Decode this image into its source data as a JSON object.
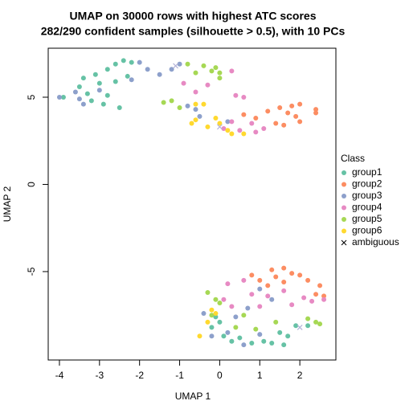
{
  "chart_data": {
    "type": "scatter",
    "title": "UMAP on 30000 rows with highest ATC scores",
    "subtitle": "282/290 confident samples (silhouette > 0.5), with 10 PCs",
    "x_label": "UMAP 1",
    "y_label": "UMAP 2",
    "legend_title": "Class",
    "legend_position": "right",
    "xlim": [
      -4.28,
      2.9
    ],
    "ylim": [
      -10.07,
      7.81
    ],
    "xticks": [
      -4,
      -3,
      -2,
      -1,
      0,
      1,
      2
    ],
    "yticks": [
      -5,
      0,
      5
    ],
    "series": [
      {
        "name": "group1",
        "color": "#66C2A5",
        "marker": "circle",
        "x": [
          -3.9,
          -3.5,
          -3.3,
          -3.1,
          -3.0,
          -2.8,
          -2.6,
          -2.4,
          -2.2,
          -2.6,
          -2.8,
          -3.2,
          -2.9,
          -2.5,
          -3.4,
          -2.3,
          -0.2,
          0.1,
          0.3,
          0.5,
          0.8,
          1.1,
          1.3,
          1.6,
          1.7,
          1.5,
          0.0,
          -0.1,
          1.9,
          2.2
        ],
        "y": [
          5.0,
          5.6,
          5.2,
          6.3,
          5.8,
          6.6,
          6.9,
          7.1,
          7.0,
          5.9,
          5.1,
          4.8,
          4.6,
          4.4,
          6.1,
          6.2,
          -8.2,
          -8.7,
          -9.0,
          -8.8,
          -9.1,
          -9.0,
          -9.1,
          -9.2,
          -8.7,
          -8.5,
          -7.9,
          -7.6,
          -8.1,
          -8.1
        ]
      },
      {
        "name": "group2",
        "color": "#FC8D62",
        "marker": "circle",
        "x": [
          0.6,
          0.9,
          1.2,
          1.4,
          1.6,
          1.7,
          1.9,
          2.0,
          1.8,
          2.0,
          2.4,
          2.4,
          1.5,
          1.0,
          1.3,
          1.4,
          1.6,
          1.8,
          2.0,
          2.2,
          2.5,
          2.6,
          2.4,
          1.2,
          1.6,
          0.8
        ],
        "y": [
          4.0,
          3.8,
          4.2,
          3.5,
          3.4,
          4.1,
          3.9,
          3.6,
          4.5,
          4.6,
          4.1,
          4.3,
          4.4,
          -5.5,
          -4.9,
          -5.3,
          -4.8,
          -5.1,
          -5.2,
          -5.5,
          -5.8,
          -6.4,
          -6.3,
          -5.8,
          -5.6,
          -5.2
        ]
      },
      {
        "name": "group3",
        "color": "#8DA0CB",
        "marker": "circle",
        "x": [
          -4.0,
          -3.6,
          -3.5,
          -3.4,
          -3.0,
          -2.2,
          -2.0,
          -1.8,
          -1.5,
          -1.2,
          -1.0,
          -0.8,
          -0.6,
          -0.5,
          0.2,
          -0.4,
          -0.2,
          0.2,
          0.6,
          1.0,
          0.4,
          1.3,
          1.0,
          0.7
        ],
        "y": [
          5.0,
          5.3,
          4.9,
          4.6,
          5.4,
          6.0,
          7.0,
          6.6,
          6.3,
          6.6,
          6.9,
          4.5,
          4.3,
          3.9,
          3.6,
          -7.4,
          -8.7,
          -8.5,
          -9.2,
          -8.6,
          -7.6,
          -6.6,
          -6.0,
          -7.1
        ]
      },
      {
        "name": "group4",
        "color": "#E78AC3",
        "marker": "circle",
        "x": [
          -0.9,
          -0.6,
          -0.3,
          0.3,
          0.4,
          0.6,
          0.8,
          0.9,
          1.1,
          0.3,
          0.1,
          0.5,
          0.2,
          0.6,
          0.8,
          1.0,
          1.2,
          1.6,
          1.8,
          2.1,
          2.3,
          2.6,
          0.3,
          0.1
        ],
        "y": [
          5.8,
          5.3,
          5.7,
          6.5,
          5.1,
          5.0,
          3.5,
          3.0,
          3.2,
          3.6,
          3.2,
          3.1,
          -5.7,
          -5.5,
          -6.3,
          -7.0,
          -6.4,
          -6.1,
          -6.9,
          -6.5,
          -6.7,
          -6.6,
          -7.0,
          -6.6
        ]
      },
      {
        "name": "group5",
        "color": "#A6D854",
        "marker": "circle",
        "x": [
          -0.2,
          -0.4,
          0.0,
          -0.1,
          -0.6,
          -0.8,
          -1.4,
          -1.2,
          -1.0,
          0.0,
          -0.3,
          -0.1,
          -0.2,
          0.0,
          0.4,
          0.9,
          1.4,
          2.2,
          2.4,
          2.5,
          0.6
        ],
        "y": [
          6.5,
          6.8,
          6.1,
          6.7,
          6.4,
          6.9,
          4.7,
          4.8,
          4.4,
          6.4,
          -6.2,
          -6.6,
          -7.5,
          -6.8,
          -8.2,
          -8.3,
          -7.9,
          -7.7,
          -7.9,
          -8.0,
          -7.5
        ]
      },
      {
        "name": "group6",
        "color": "#FFD92F",
        "marker": "circle",
        "x": [
          -0.6,
          -0.3,
          -0.1,
          0.2,
          0.3,
          0.6,
          -0.6,
          -0.4,
          -0.7,
          0.0,
          -0.5,
          -0.3,
          -0.1,
          -0.2
        ],
        "y": [
          3.7,
          3.3,
          3.8,
          3.1,
          2.9,
          2.9,
          4.6,
          4.6,
          3.5,
          3.5,
          -8.7,
          -7.9,
          -7.4,
          -7.2
        ]
      },
      {
        "name": "ambiguous",
        "color": "#000000",
        "point_color": "#B3B3D9",
        "marker": "cross",
        "x": [
          -1.1,
          0.0,
          2.0
        ],
        "y": [
          6.8,
          3.3,
          -8.2
        ]
      }
    ]
  }
}
